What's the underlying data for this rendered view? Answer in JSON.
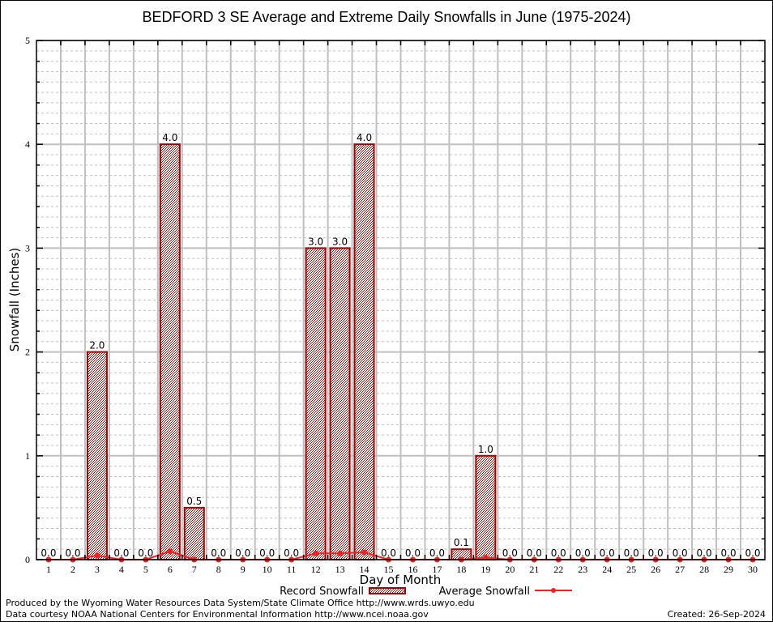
{
  "chart_data": {
    "type": "bar",
    "title": "BEDFORD 3 SE Average and Extreme Daily Snowfalls in June (1975-2024)",
    "xlabel": "Day of Month",
    "ylabel": "Snowfall (Inches)",
    "ylim": [
      0,
      5
    ],
    "yticks": [
      "0",
      "1",
      "2",
      "3",
      "4",
      "5"
    ],
    "grid": true,
    "categories": [
      "1",
      "2",
      "3",
      "4",
      "5",
      "6",
      "7",
      "8",
      "9",
      "10",
      "11",
      "12",
      "13",
      "14",
      "15",
      "16",
      "17",
      "18",
      "19",
      "20",
      "21",
      "22",
      "23",
      "24",
      "25",
      "26",
      "27",
      "28",
      "29",
      "30"
    ],
    "series": [
      {
        "name": "Record Snowfall",
        "kind": "bar",
        "color": "#990000",
        "values": [
          0.0,
          0.0,
          2.0,
          0.0,
          0.0,
          4.0,
          0.5,
          0.0,
          0.0,
          0.0,
          0.0,
          3.0,
          3.0,
          4.0,
          0.0,
          0.0,
          0.0,
          0.1,
          1.0,
          0.0,
          0.0,
          0.0,
          0.0,
          0.0,
          0.0,
          0.0,
          0.0,
          0.0,
          0.0,
          0.0
        ],
        "labels": [
          "0.0",
          "0.0",
          "2.0",
          "0.0",
          "0.0",
          "4.0",
          "0.5",
          "0.0",
          "0.0",
          "0.0",
          "0.0",
          "3.0",
          "3.0",
          "4.0",
          "0.0",
          "0.0",
          "0.0",
          "0.1",
          "1.0",
          "0.0",
          "0.0",
          "0.0",
          "0.0",
          "0.0",
          "0.0",
          "0.0",
          "0.0",
          "0.0",
          "0.0",
          "0.0"
        ]
      },
      {
        "name": "Average Snowfall",
        "kind": "line",
        "color": "#ee2222",
        "values": [
          0,
          0,
          0.04,
          0,
          0,
          0.08,
          0,
          0,
          0,
          0,
          0,
          0.06,
          0.06,
          0.07,
          0,
          0,
          0,
          0,
          0.02,
          0,
          0,
          0,
          0,
          0,
          0,
          0,
          0,
          0,
          0,
          0
        ]
      }
    ],
    "legend": {
      "placement": "bottom-center",
      "entries": [
        "Record Snowfall",
        "Average Snowfall"
      ]
    }
  },
  "footer": {
    "produced_by": "Produced by the Wyoming Water Resources Data System/State Climate Office http://www.wrds.uwyo.edu",
    "data_courtesy": "Data courtesy NOAA National Centers for Environmental Information http://www.ncei.noaa.gov",
    "created": "Created: 26-Sep-2024"
  }
}
